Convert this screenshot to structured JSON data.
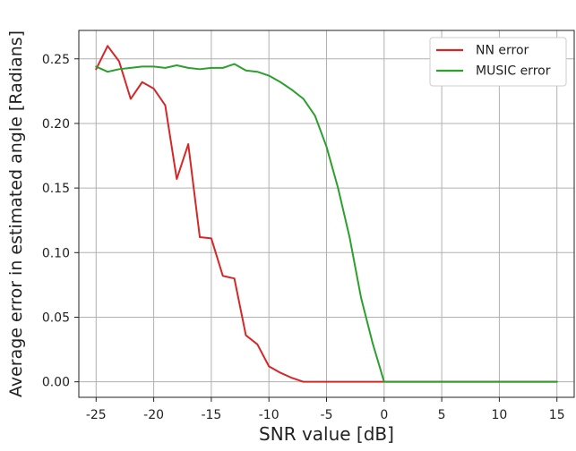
{
  "chart_data": {
    "type": "line",
    "xlabel": "SNR value [dB]",
    "ylabel": "Average error in estimated angle [Radians]",
    "xlim": [
      -26.5,
      16.5
    ],
    "ylim": [
      -0.012,
      0.272
    ],
    "xticks": [
      -25,
      -20,
      -15,
      -10,
      -5,
      0,
      5,
      10,
      15
    ],
    "yticks": [
      0.0,
      0.05,
      0.1,
      0.15,
      0.2,
      0.25
    ],
    "grid": true,
    "legend_position": "top-right",
    "series": [
      {
        "name": "NN error",
        "color": "#d62728",
        "x": [
          -25,
          -24,
          -23,
          -22,
          -21,
          -20,
          -19,
          -18,
          -17,
          -16,
          -15,
          -14,
          -13,
          -12,
          -11,
          -10,
          -9,
          -8,
          -7,
          -6,
          -5,
          -4,
          -3,
          -2,
          -1,
          0,
          1,
          2,
          3,
          4,
          5,
          6,
          7,
          8,
          9,
          10,
          11,
          12,
          13,
          14,
          15
        ],
        "y": [
          0.242,
          0.26,
          0.248,
          0.219,
          0.232,
          0.227,
          0.214,
          0.157,
          0.184,
          0.112,
          0.111,
          0.082,
          0.08,
          0.036,
          0.029,
          0.012,
          0.007,
          0.003,
          0.0,
          0.0,
          0.0,
          0.0,
          0.0,
          0.0,
          0.0,
          0.0,
          0.0,
          0.0,
          0.0,
          0.0,
          0.0,
          0.0,
          0.0,
          0.0,
          0.0,
          0.0,
          0.0,
          0.0,
          0.0,
          0.0,
          0.0
        ]
      },
      {
        "name": "MUSIC error",
        "color": "#2ca02c",
        "x": [
          -25,
          -24,
          -23,
          -22,
          -21,
          -20,
          -19,
          -18,
          -17,
          -16,
          -15,
          -14,
          -13,
          -12,
          -11,
          -10,
          -9,
          -8,
          -7,
          -6,
          -5,
          -4,
          -3,
          -2,
          -1,
          0,
          1,
          2,
          3,
          4,
          5,
          6,
          7,
          8,
          9,
          10,
          11,
          12,
          13,
          14,
          15
        ],
        "y": [
          0.244,
          0.24,
          0.242,
          0.243,
          0.244,
          0.244,
          0.243,
          0.245,
          0.243,
          0.242,
          0.243,
          0.243,
          0.246,
          0.241,
          0.24,
          0.237,
          0.232,
          0.226,
          0.219,
          0.206,
          0.182,
          0.15,
          0.112,
          0.065,
          0.03,
          0.0,
          0.0,
          0.0,
          0.0,
          0.0,
          0.0,
          0.0,
          0.0,
          0.0,
          0.0,
          0.0,
          0.0,
          0.0,
          0.0,
          0.0,
          0.0
        ]
      }
    ]
  },
  "colors": {
    "nn": "#d62728",
    "music": "#2ca02c",
    "grid": "#b0b0b0",
    "axis": "#222222"
  }
}
